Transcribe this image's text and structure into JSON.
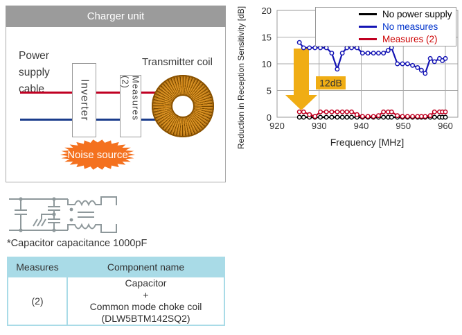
{
  "charger_diagram": {
    "title": "Charger unit",
    "power_cable_label": "Power\nsupply\ncable",
    "inverter_label": "Inverter",
    "measures_label": "Measures (2)",
    "transmitter_label": "Transmitter coil",
    "noise_label": "Noise source"
  },
  "chart_data": {
    "type": "line",
    "xlabel": "Frequency [MHz]",
    "ylabel": "Reduction in Reception Sensitivity [dB]",
    "xlim": [
      920,
      963
    ],
    "ylim": [
      0,
      20
    ],
    "x_ticks": [
      920,
      930,
      940,
      950,
      960
    ],
    "y_ticks": [
      0,
      5,
      10,
      15,
      20
    ],
    "grid": true,
    "legend_position": "top-right",
    "markers": "open-circle",
    "x": [
      925.3,
      926.3,
      927.7,
      929.0,
      930.3,
      931.7,
      933.0,
      934.3,
      935.5,
      936.6,
      937.7,
      939.0,
      940.3,
      941.6,
      942.9,
      944.1,
      945.3,
      946.4,
      947.2,
      948.6,
      949.8,
      951.0,
      952.2,
      953.4,
      954.3,
      955.2,
      956.4,
      957.4,
      958.6,
      959.3,
      960.0
    ],
    "series": [
      {
        "name": "No power supply",
        "color": "#000000",
        "text_color": "#000000",
        "values": [
          0,
          0,
          0,
          0,
          0,
          0,
          0,
          0,
          0,
          0,
          0,
          0,
          0,
          0,
          0,
          0,
          0,
          0,
          0,
          0,
          0,
          0,
          0,
          0,
          0,
          0,
          0,
          0,
          0,
          0,
          0
        ]
      },
      {
        "name": "No measures",
        "color": "#1414b4",
        "text_color": "#0033cc",
        "values": [
          14,
          13,
          13,
          13,
          13,
          13,
          12,
          9,
          12,
          13,
          13,
          13,
          12,
          12,
          12,
          12,
          12,
          12.5,
          13,
          10,
          10,
          10,
          9.7,
          9.3,
          8.8,
          8.2,
          11,
          10.4,
          11,
          10.6,
          11
        ]
      },
      {
        "name": "Measures (2)",
        "color": "#c00021",
        "text_color": "#cc0000",
        "values": [
          1,
          1,
          0.5,
          0.15,
          1,
          1,
          1,
          1,
          1,
          1,
          1,
          0.5,
          0.15,
          0.15,
          0.15,
          0.3,
          1,
          1,
          1,
          0.3,
          0.15,
          0.15,
          0.15,
          0.15,
          0.15,
          0.15,
          0.3,
          1,
          1,
          1,
          1
        ]
      }
    ],
    "annotation": {
      "text": "12dB",
      "color": "#f0ad14",
      "text_color": "#333333"
    }
  },
  "schematic": {
    "caption": "*Capacitor capacitance 1000pF"
  },
  "table": {
    "headers": [
      "Measures",
      "Component name"
    ],
    "rows": [
      [
        "(2)",
        "Capacitor\n+\nCommon mode choke coil\n(DLW5BTM142SQ2)"
      ]
    ]
  },
  "colors": {
    "header_gray": "#9b9b9b",
    "noise_orange": "#f4711f",
    "wire_red": "#c00022",
    "wire_blue": "#1a3c8c",
    "table_blue": "#a9dbe7",
    "arrow_gold": "#f0ad14",
    "coil_gold": "#d9931f",
    "schematic_gray": "#8e989b"
  }
}
